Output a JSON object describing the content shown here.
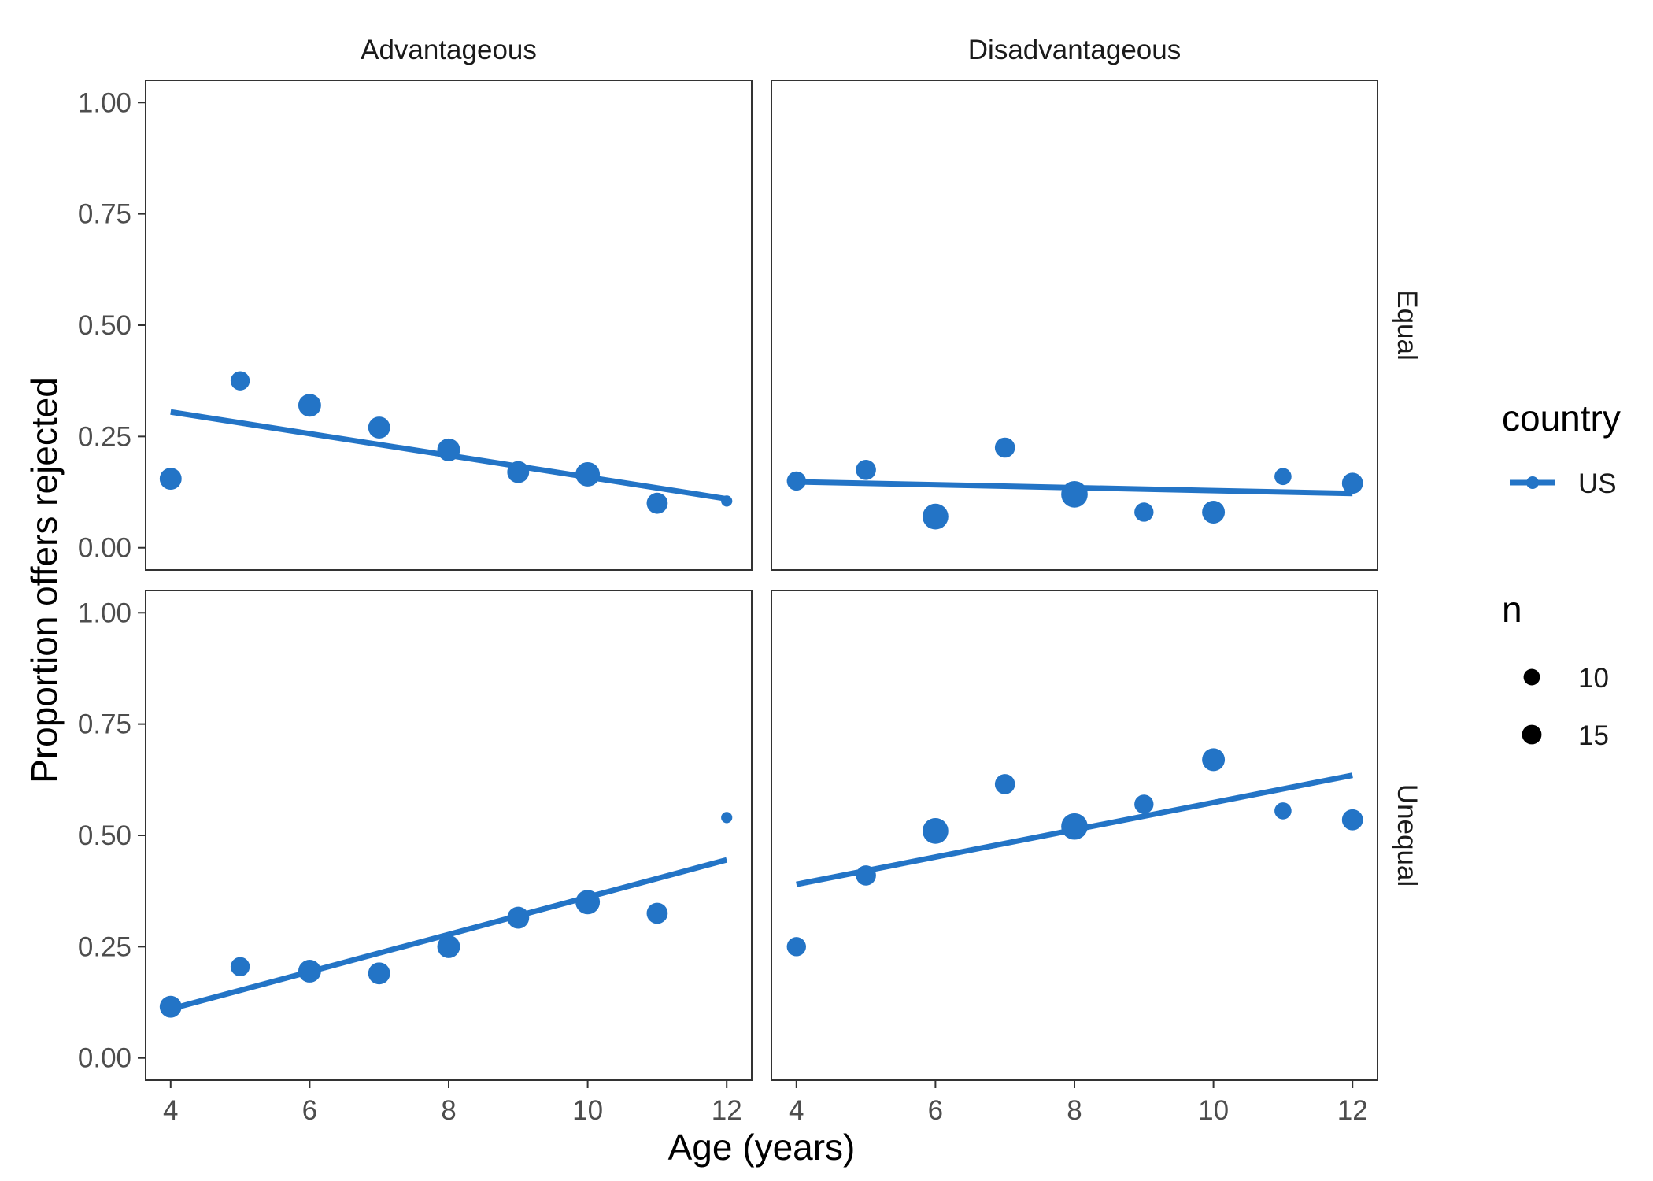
{
  "chart_data": {
    "type": "scatter",
    "facet_columns": [
      "Advantageous",
      "Disadvantageous"
    ],
    "facet_rows": [
      "Equal",
      "Unequal"
    ],
    "xlabel": "Age (years)",
    "ylabel": "Proportion offers rejected",
    "xlim": [
      3.64,
      12.36
    ],
    "ylim": [
      -0.05,
      1.05
    ],
    "x_ticks": [
      4,
      6,
      8,
      10,
      12
    ],
    "x_tick_labels": [
      "4",
      "6",
      "8",
      "10",
      "12"
    ],
    "y_ticks": [
      0,
      0.25,
      0.5,
      0.75,
      1
    ],
    "y_tick_labels": [
      "0.00",
      "0.25",
      "0.50",
      "0.75",
      "1.00"
    ],
    "grid": false,
    "color": "#2374c6",
    "legend": {
      "position": "right",
      "color_title": "country",
      "color_entries": [
        {
          "label": "US",
          "color": "#2374c6"
        }
      ],
      "size_title": "n",
      "size_entries": [
        {
          "label": "10",
          "value": 10
        },
        {
          "label": "15",
          "value": 15
        }
      ]
    },
    "panels": [
      {
        "col": "Advantageous",
        "row": "Equal",
        "points": [
          {
            "x": 4,
            "y": 0.155,
            "n": 11
          },
          {
            "x": 5,
            "y": 0.375,
            "n": 8
          },
          {
            "x": 6,
            "y": 0.32,
            "n": 12
          },
          {
            "x": 7,
            "y": 0.27,
            "n": 11
          },
          {
            "x": 8,
            "y": 0.22,
            "n": 12
          },
          {
            "x": 9,
            "y": 0.17,
            "n": 11
          },
          {
            "x": 10,
            "y": 0.165,
            "n": 14
          },
          {
            "x": 11,
            "y": 0.1,
            "n": 10
          },
          {
            "x": 12,
            "y": 0.105,
            "n": 2
          }
        ],
        "fit": {
          "x": [
            4,
            12
          ],
          "y": [
            0.305,
            0.11
          ]
        }
      },
      {
        "col": "Disadvantageous",
        "row": "Equal",
        "points": [
          {
            "x": 4,
            "y": 0.15,
            "n": 8
          },
          {
            "x": 5,
            "y": 0.175,
            "n": 9
          },
          {
            "x": 6,
            "y": 0.07,
            "n": 16
          },
          {
            "x": 7,
            "y": 0.225,
            "n": 9
          },
          {
            "x": 8,
            "y": 0.12,
            "n": 17
          },
          {
            "x": 9,
            "y": 0.08,
            "n": 8
          },
          {
            "x": 10,
            "y": 0.08,
            "n": 12
          },
          {
            "x": 11,
            "y": 0.16,
            "n": 6
          },
          {
            "x": 12,
            "y": 0.145,
            "n": 10
          }
        ],
        "fit": {
          "x": [
            4,
            12
          ],
          "y": [
            0.148,
            0.122
          ]
        }
      },
      {
        "col": "Advantageous",
        "row": "Unequal",
        "points": [
          {
            "x": 4,
            "y": 0.115,
            "n": 11
          },
          {
            "x": 5,
            "y": 0.205,
            "n": 8
          },
          {
            "x": 6,
            "y": 0.195,
            "n": 12
          },
          {
            "x": 7,
            "y": 0.19,
            "n": 11
          },
          {
            "x": 8,
            "y": 0.25,
            "n": 12
          },
          {
            "x": 9,
            "y": 0.315,
            "n": 11
          },
          {
            "x": 10,
            "y": 0.35,
            "n": 14
          },
          {
            "x": 11,
            "y": 0.325,
            "n": 10
          },
          {
            "x": 12,
            "y": 0.54,
            "n": 2
          }
        ],
        "fit": {
          "x": [
            4,
            12
          ],
          "y": [
            0.11,
            0.445
          ]
        }
      },
      {
        "col": "Disadvantageous",
        "row": "Unequal",
        "points": [
          {
            "x": 4,
            "y": 0.25,
            "n": 8
          },
          {
            "x": 5,
            "y": 0.41,
            "n": 9
          },
          {
            "x": 6,
            "y": 0.51,
            "n": 16
          },
          {
            "x": 7,
            "y": 0.615,
            "n": 9
          },
          {
            "x": 8,
            "y": 0.52,
            "n": 17
          },
          {
            "x": 9,
            "y": 0.57,
            "n": 8
          },
          {
            "x": 10,
            "y": 0.67,
            "n": 12
          },
          {
            "x": 11,
            "y": 0.555,
            "n": 6
          },
          {
            "x": 12,
            "y": 0.535,
            "n": 10
          }
        ],
        "fit": {
          "x": [
            4,
            12
          ],
          "y": [
            0.39,
            0.635
          ]
        }
      }
    ]
  }
}
